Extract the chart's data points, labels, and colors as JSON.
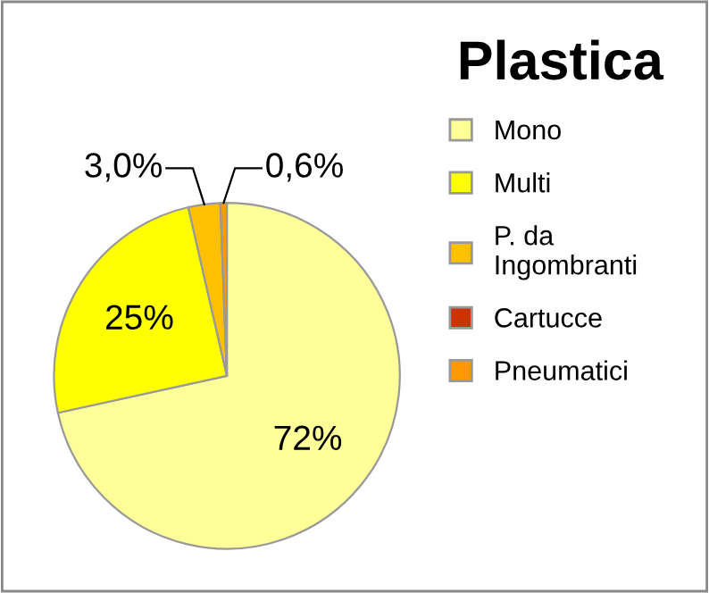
{
  "chart_data": {
    "type": "pie",
    "title": "Plastica",
    "categories": [
      "Mono",
      "Multi",
      "P. da\nIngombranti",
      "Cartucce",
      "Pneumatici"
    ],
    "values": [
      72,
      25,
      3.0,
      0,
      0.6
    ],
    "value_labels": [
      "72%",
      "25%",
      "3,0%",
      null,
      "0,6%"
    ],
    "colors": [
      "#ffff99",
      "#ffff00",
      "#ffc000",
      "#cc3300",
      "#ff9900"
    ],
    "legend": "right"
  }
}
